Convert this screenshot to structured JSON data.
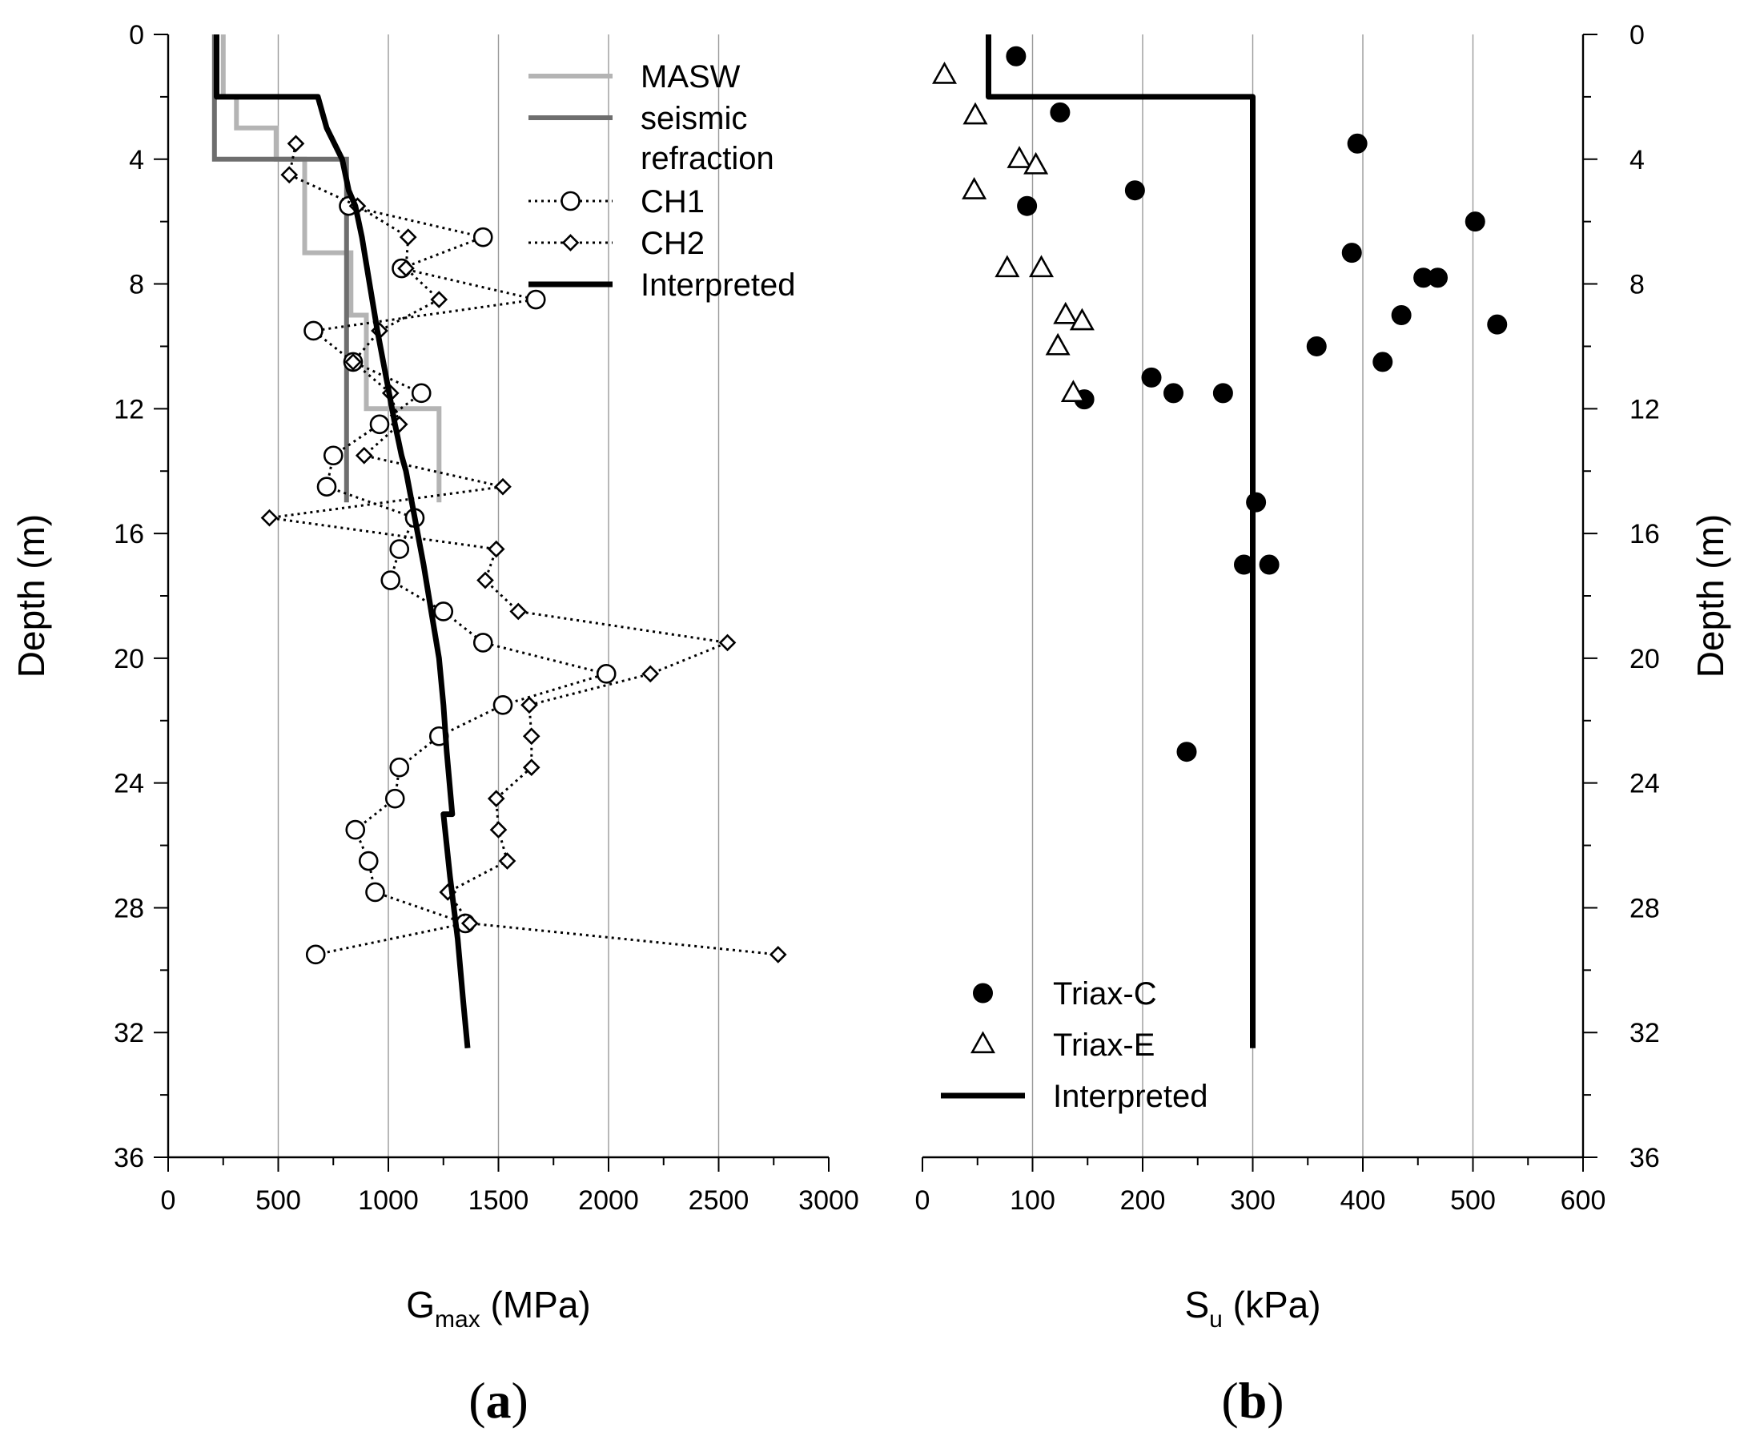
{
  "chart_data": [
    {
      "type": "line",
      "panel_label": {
        "paren_open": "(",
        "letter": "a",
        "paren_close": ")"
      },
      "xlabel": {
        "main": "G",
        "sub": "max",
        "unit": " (MPa)"
      },
      "ylabel": "Depth (m)",
      "xlim": [
        0,
        3000
      ],
      "ylim": [
        0,
        36
      ],
      "y_inverted": true,
      "x_ticks": [
        "0",
        "500",
        "1000",
        "1500",
        "2000",
        "2500",
        "3000"
      ],
      "y_ticks": [
        "0",
        "4",
        "8",
        "12",
        "16",
        "20",
        "24",
        "28",
        "32",
        "36"
      ],
      "grid": "vertical",
      "legend_position": "top-right",
      "series": [
        {
          "name": "MASW",
          "style": "step",
          "color": "#b4b4b4",
          "points": [
            [
              250,
              0
            ],
            [
              250,
              2
            ],
            [
              310,
              2
            ],
            [
              310,
              3
            ],
            [
              490,
              3
            ],
            [
              490,
              4
            ],
            [
              620,
              4
            ],
            [
              620,
              7
            ],
            [
              830,
              7
            ],
            [
              830,
              9
            ],
            [
              900,
              9
            ],
            [
              900,
              12
            ],
            [
              1230,
              12
            ],
            [
              1230,
              15
            ]
          ]
        },
        {
          "name": "seismic refraction",
          "name_lines": [
            "seismic",
            "refraction"
          ],
          "style": "step",
          "color": "#6e6e6e",
          "points": [
            [
              210,
              0
            ],
            [
              210,
              4
            ],
            [
              810,
              4
            ],
            [
              810,
              15
            ]
          ]
        },
        {
          "name": "CH1",
          "style": "dotted-marker",
          "marker": "circle",
          "color": "#000000",
          "points": [
            [
              820,
              5.5
            ],
            [
              1430,
              6.5
            ],
            [
              1060,
              7.5
            ],
            [
              1670,
              8.5
            ],
            [
              660,
              9.5
            ],
            [
              840,
              10.5
            ],
            [
              1150,
              11.5
            ],
            [
              960,
              12.5
            ],
            [
              750,
              13.5
            ],
            [
              720,
              14.5
            ],
            [
              1120,
              15.5
            ],
            [
              1050,
              16.5
            ],
            [
              1010,
              17.5
            ],
            [
              1250,
              18.5
            ],
            [
              1430,
              19.5
            ],
            [
              1990,
              20.5
            ],
            [
              1520,
              21.5
            ],
            [
              1230,
              22.5
            ],
            [
              1050,
              23.5
            ],
            [
              1030,
              24.5
            ],
            [
              850,
              25.5
            ],
            [
              910,
              26.5
            ],
            [
              940,
              27.5
            ],
            [
              1350,
              28.5
            ],
            [
              670,
              29.5
            ]
          ]
        },
        {
          "name": "CH2",
          "style": "dotted-marker",
          "marker": "diamond",
          "color": "#000000",
          "points": [
            [
              580,
              3.5
            ],
            [
              550,
              4.5
            ],
            [
              860,
              5.5
            ],
            [
              1090,
              6.5
            ],
            [
              1080,
              7.5
            ],
            [
              1230,
              8.5
            ],
            [
              960,
              9.5
            ],
            [
              840,
              10.5
            ],
            [
              1010,
              11.5
            ],
            [
              1050,
              12.5
            ],
            [
              890,
              13.5
            ],
            [
              1520,
              14.5
            ],
            [
              460,
              15.5
            ],
            [
              1490,
              16.5
            ],
            [
              1440,
              17.5
            ],
            [
              1590,
              18.5
            ],
            [
              2540,
              19.5
            ],
            [
              2190,
              20.5
            ],
            [
              1640,
              21.5
            ],
            [
              1650,
              22.5
            ],
            [
              1650,
              23.5
            ],
            [
              1490,
              24.5
            ],
            [
              1500,
              25.5
            ],
            [
              1540,
              26.5
            ],
            [
              1270,
              27.5
            ],
            [
              1370,
              28.5
            ],
            [
              2770,
              29.5
            ]
          ]
        },
        {
          "name": "Interpreted",
          "style": "solid-thick",
          "color": "#000000",
          "points": [
            [
              220,
              0
            ],
            [
              220,
              2
            ],
            [
              680,
              2
            ],
            [
              720,
              3
            ],
            [
              790,
              4
            ],
            [
              820,
              5
            ],
            [
              850,
              5.5
            ],
            [
              880,
              6.5
            ],
            [
              915,
              8
            ],
            [
              950,
              9.5
            ],
            [
              990,
              11
            ],
            [
              1030,
              12.5
            ],
            [
              1060,
              13.5
            ],
            [
              1080,
              14
            ],
            [
              1120,
              15.5
            ],
            [
              1160,
              17
            ],
            [
              1195,
              18.5
            ],
            [
              1230,
              20
            ],
            [
              1250,
              21.5
            ],
            [
              1265,
              23
            ],
            [
              1290,
              25
            ],
            [
              1250,
              25
            ],
            [
              1280,
              27
            ],
            [
              1315,
              29
            ],
            [
              1340,
              31
            ],
            [
              1360,
              32.5
            ]
          ]
        }
      ]
    },
    {
      "type": "scatter",
      "panel_label": {
        "paren_open": "(",
        "letter": "b",
        "paren_close": ")"
      },
      "xlabel": {
        "main": "S",
        "sub": "u",
        "unit": " (kPa)"
      },
      "ylabel": "Depth (m)",
      "xlim": [
        0,
        600
      ],
      "ylim": [
        0,
        36
      ],
      "y_inverted": true,
      "x_ticks": [
        "0",
        "100",
        "200",
        "300",
        "400",
        "500",
        "600"
      ],
      "y_ticks": [
        "0",
        "4",
        "8",
        "12",
        "16",
        "20",
        "24",
        "28",
        "32",
        "36"
      ],
      "grid": "vertical",
      "legend_position": "bottom-left",
      "series": [
        {
          "name": "Triax-C",
          "style": "marker",
          "marker": "filled-circle",
          "color": "#000000",
          "points": [
            [
              85,
              0.7
            ],
            [
              125,
              2.5
            ],
            [
              395,
              3.5
            ],
            [
              193,
              5
            ],
            [
              95,
              5.5
            ],
            [
              502,
              6
            ],
            [
              390,
              7
            ],
            [
              455,
              7.8
            ],
            [
              468,
              7.8
            ],
            [
              435,
              9
            ],
            [
              522,
              9.3
            ],
            [
              358,
              10
            ],
            [
              418,
              10.5
            ],
            [
              208,
              11
            ],
            [
              228,
              11.5
            ],
            [
              273,
              11.5
            ],
            [
              147,
              11.7
            ],
            [
              303,
              15
            ],
            [
              292,
              17
            ],
            [
              315,
              17
            ],
            [
              240,
              23
            ]
          ]
        },
        {
          "name": "Triax-E",
          "style": "marker",
          "marker": "open-triangle",
          "color": "#000000",
          "points": [
            [
              20,
              1.3
            ],
            [
              48,
              2.6
            ],
            [
              88,
              4
            ],
            [
              103,
              4.2
            ],
            [
              47,
              5
            ],
            [
              77,
              7.5
            ],
            [
              108,
              7.5
            ],
            [
              130,
              9
            ],
            [
              145,
              9.2
            ],
            [
              123,
              10
            ],
            [
              137,
              11.5
            ]
          ]
        },
        {
          "name": "Interpreted",
          "style": "solid-thick",
          "color": "#000000",
          "points": [
            [
              60,
              0
            ],
            [
              60,
              2
            ],
            [
              300,
              2
            ],
            [
              300,
              32.5
            ]
          ]
        }
      ]
    }
  ]
}
